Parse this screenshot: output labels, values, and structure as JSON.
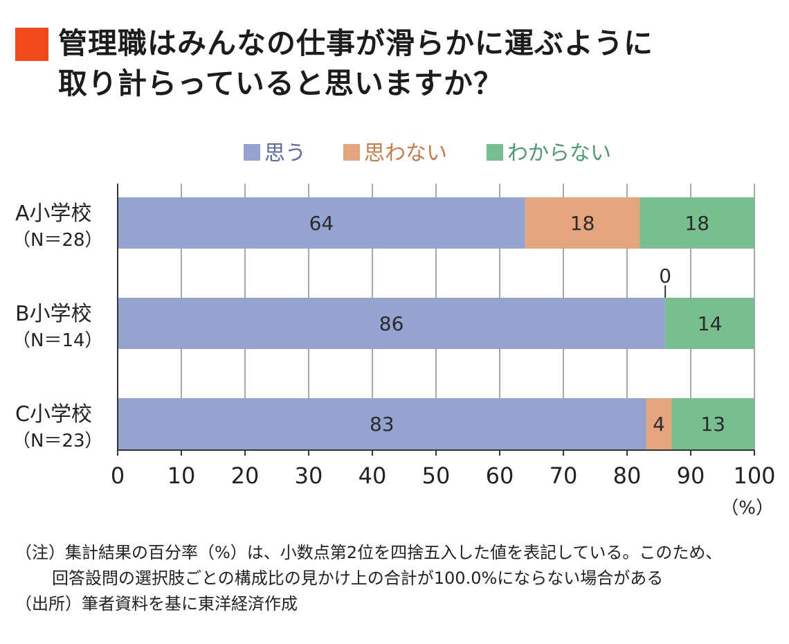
{
  "title": {
    "line1": "管理職はみんなの仕事が滑らかに運ぶように",
    "line2": "取り計らっていると思いますか？"
  },
  "chart_data": {
    "type": "bar",
    "orientation": "horizontal",
    "stacked": true,
    "categories": [
      {
        "name": "A小学校",
        "sub": "（N＝28）"
      },
      {
        "name": "B小学校",
        "sub": "（N＝14）"
      },
      {
        "name": "C小学校",
        "sub": "（N＝23）"
      }
    ],
    "series": [
      {
        "name": "思う",
        "color": "#95a3d1",
        "values": [
          64,
          86,
          83
        ]
      },
      {
        "name": "思わない",
        "color": "#e4a57d",
        "values": [
          18,
          0,
          4
        ]
      },
      {
        "name": "わからない",
        "color": "#78bf90",
        "values": [
          18,
          14,
          13
        ]
      }
    ],
    "xlim": [
      0,
      100
    ],
    "xticks": [
      "0",
      "10",
      "20",
      "30",
      "40",
      "50",
      "60",
      "70",
      "80",
      "90",
      "100"
    ],
    "xunit": "（%）",
    "grid": true,
    "legend_position": "top",
    "legend_text_colors": [
      "#5b6aa6",
      "#c97a49",
      "#4e9a6a"
    ]
  },
  "notes": [
    "（注）集計結果の百分率（%）は、小数点第2位を四捨五入した値を表記している。このため、",
    "回答設問の選択肢ごとの構成比の見かけ上の合計が100.0%にならない場合がある",
    "（出所）筆者資料を基に東洋経済作成"
  ]
}
